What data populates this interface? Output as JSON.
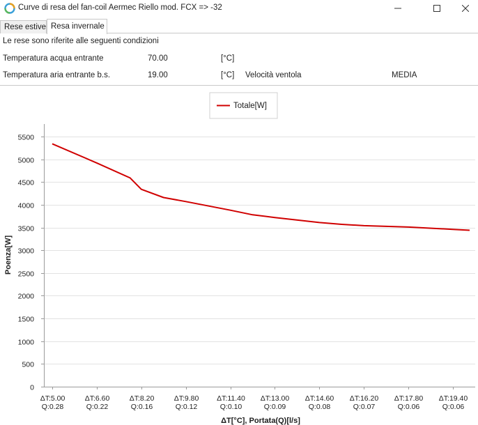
{
  "window": {
    "title": "Curve di resa del fan-coil Aermec Riello mod. FCX => -32"
  },
  "tabs": [
    {
      "label": "Rese estive",
      "active": false
    },
    {
      "label": "Resa invernale",
      "active": true
    }
  ],
  "conditions": {
    "intro": "Le rese sono riferite alle seguenti condizioni",
    "water_label": "Temperatura acqua entrante",
    "water_value": "70.00",
    "water_unit": "[°C]",
    "air_label": "Temperatura aria entrante b.s.",
    "air_value": "19.00",
    "air_unit": "[°C]",
    "fan_label": "Velocità ventola",
    "fan_value": "MEDIA"
  },
  "chart_data": {
    "type": "line",
    "legend": "top-center",
    "grid": true,
    "xlabel": "ΔT[°C], Portata(Q)[l/s]",
    "ylabel": "Poenza[W]",
    "ylim": [
      0,
      5500
    ],
    "yticks": [
      0,
      500,
      1000,
      1500,
      2000,
      2500,
      3000,
      3500,
      4000,
      4500,
      5000,
      5500
    ],
    "x": [
      5.0,
      6.6,
      8.2,
      9.8,
      11.4,
      13.0,
      14.6,
      16.2,
      17.8,
      19.4
    ],
    "xlim": [
      4.7,
      20.2
    ],
    "x_tick_labels": [
      [
        "ΔT:5.00",
        "Q:0.28"
      ],
      [
        "ΔT:6.60",
        "Q:0.22"
      ],
      [
        "ΔT:8.20",
        "Q:0.16"
      ],
      [
        "ΔT:9.80",
        "Q:0.12"
      ],
      [
        "ΔT:11.40",
        "Q:0.10"
      ],
      [
        "ΔT:13.00",
        "Q:0.09"
      ],
      [
        "ΔT:14.60",
        "Q:0.08"
      ],
      [
        "ΔT:16.20",
        "Q:0.07"
      ],
      [
        "ΔT:17.80",
        "Q:0.06"
      ],
      [
        "ΔT:19.40",
        "Q:0.06"
      ]
    ],
    "series": [
      {
        "name": "Totale[W]",
        "color": "#d00000",
        "x": [
          5.0,
          6.6,
          7.8,
          8.2,
          9.0,
          9.8,
          11.4,
          12.2,
          13.0,
          14.6,
          15.4,
          16.2,
          17.8,
          19.4,
          20.0
        ],
        "values": [
          5340,
          4920,
          4590,
          4340,
          4160,
          4070,
          3880,
          3780,
          3720,
          3610,
          3570,
          3540,
          3510,
          3460,
          3440
        ]
      }
    ]
  }
}
